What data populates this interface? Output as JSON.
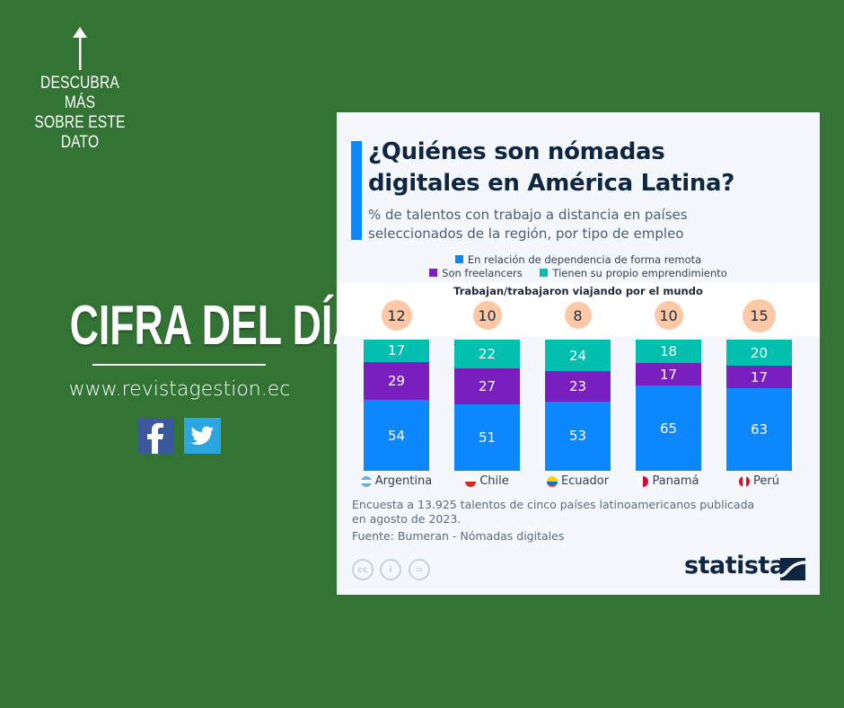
{
  "sidebar": {
    "arrow_icon": "arrow-up-icon",
    "discover_lines": [
      "DESCUBRA MÁS",
      "SOBRE ESTE",
      "DATO"
    ],
    "headline": "CIFRA DEL DÍA",
    "website": "www.revistagestion.ec",
    "social": [
      {
        "name": "facebook",
        "icon": "facebook-icon",
        "color": "#3a589b"
      },
      {
        "name": "twitter",
        "icon": "twitter-icon",
        "color": "#2ba6e1"
      }
    ]
  },
  "card": {
    "title": "¿Quiénes son nómadas digitales en América Latina?",
    "title_lines": [
      "¿Quiénes son nómadas",
      "digitales en América Latina?"
    ],
    "subtitle_lines": [
      "% de talentos con trabajo a distancia en países",
      "seleccionados de la región, por tipo de empleo"
    ],
    "note_lines": [
      "Encuesta a 13.925 talentos de cinco países latinoamericanos publicada",
      "en agosto de 2023."
    ],
    "source": "Fuente: Bumeran - Nómadas digitales",
    "license_icons": [
      "cc-icon",
      "attribution-icon",
      "no-derivatives-icon"
    ],
    "license_glyphs": [
      "cc",
      "i",
      "="
    ],
    "brand": "statista",
    "colors": {
      "accent": "#0d87fe",
      "title": "#0f2642",
      "bubble": "#fcc8a6"
    }
  },
  "chart_data": {
    "type": "bar",
    "stacked": true,
    "title": "¿Quiénes son nómadas digitales en América Latina?",
    "subtitle": "% de talentos con trabajo a distancia en países seleccionados de la región, por tipo de empleo",
    "categories": [
      "Argentina",
      "Chile",
      "Ecuador",
      "Panamá",
      "Perú"
    ],
    "series": [
      {
        "name": "En relación de dependencia de forma remota",
        "color": "#0d87fe",
        "values": [
          54,
          51,
          53,
          65,
          63
        ]
      },
      {
        "name": "Son freelancers",
        "color": "#7a1fbf",
        "values": [
          29,
          27,
          23,
          17,
          17
        ]
      },
      {
        "name": "Tienen su propio emprendimiento",
        "color": "#00bfae",
        "values": [
          17,
          22,
          24,
          18,
          20
        ]
      }
    ],
    "legend_order": [
      0,
      1,
      2
    ],
    "legend_position": "top",
    "ylim": [
      0,
      100
    ],
    "extra_row": {
      "label": "Trabajan/trabajaron viajando por el mundo",
      "values": [
        12,
        10,
        8,
        10,
        15
      ]
    },
    "xlabel": "",
    "ylabel": "",
    "grid": false
  }
}
